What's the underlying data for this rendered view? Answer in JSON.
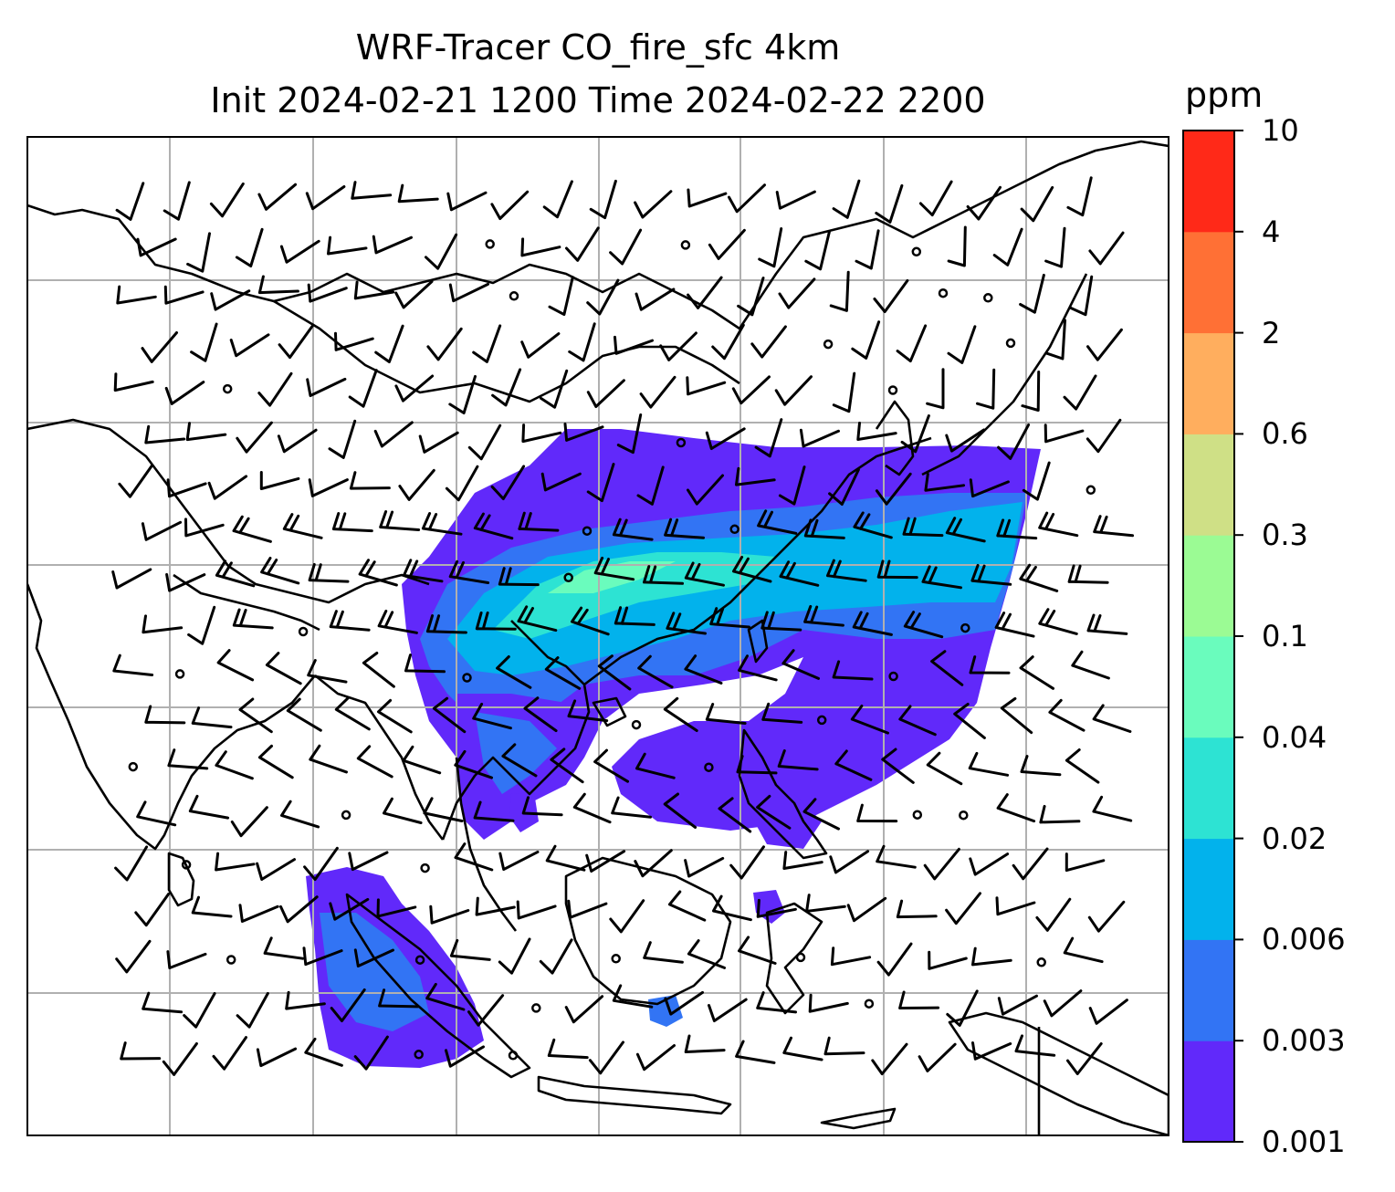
{
  "title": {
    "line1": "WRF-Tracer CO_fire_sfc 4km",
    "line2": "Init 2024-02-21 1200 Time 2024-02-22 2200"
  },
  "colorbar": {
    "label": "ppm",
    "ticks": [
      "0.001",
      "0.003",
      "0.006",
      "0.02",
      "0.04",
      "0.1",
      "0.3",
      "0.6",
      "2",
      "4",
      "10"
    ],
    "colors": [
      "#6129fa",
      "#3274f4",
      "#02b2ec",
      "#2de3d3",
      "#6afcbd",
      "#9bfb94",
      "#cfe086",
      "#ffae5e",
      "#ff7035",
      "#ff2918"
    ]
  },
  "map": {
    "region": "Southeast Asia / East Asia",
    "land_outline_color": "#000000",
    "gridline_color": "#b0b0b0",
    "wind_barbs": true,
    "layers": [
      "coastlines",
      "country borders",
      "gridlines",
      "CO_fire_sfc shading",
      "wind barbs"
    ]
  }
}
